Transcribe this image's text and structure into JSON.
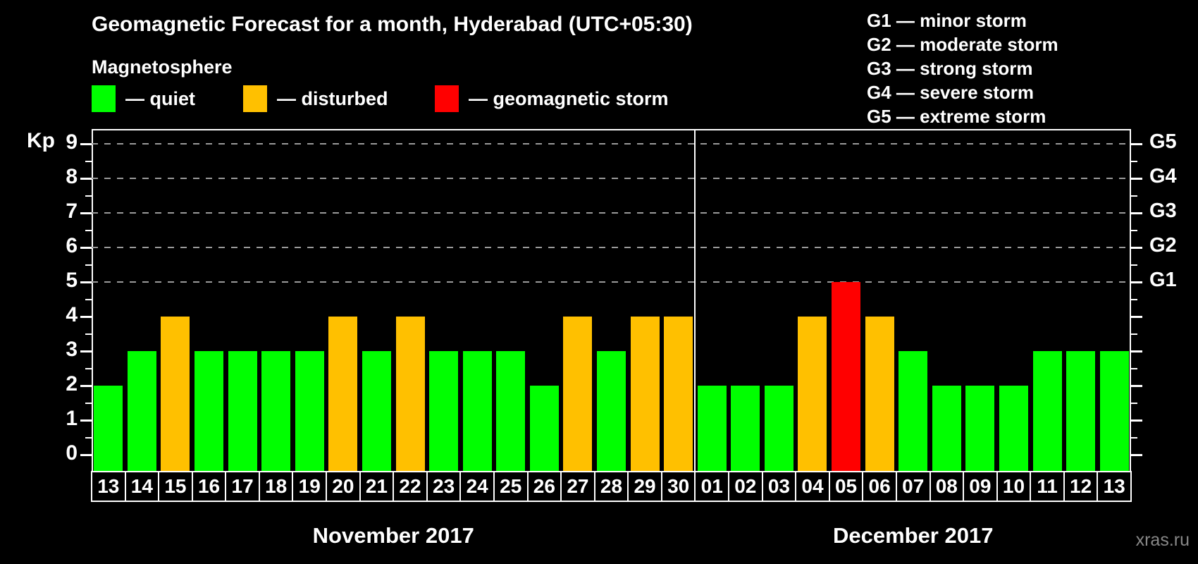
{
  "title": "Geomagnetic Forecast for a month, Hyderabad (UTC+05:30)",
  "subtitle": "Magnetosphere",
  "legend": {
    "items": [
      {
        "key": "quiet",
        "label": "— quiet",
        "color": "#00ff00"
      },
      {
        "key": "disturbed",
        "label": "— disturbed",
        "color": "#ffc000"
      },
      {
        "key": "storm",
        "label": "— geomagnetic storm",
        "color": "#ff0000"
      }
    ]
  },
  "g_scale_legend": {
    "lines": [
      "G1 — minor storm",
      "G2 — moderate storm",
      "G3 — strong storm",
      "G4 — severe storm",
      "G5 — extreme storm"
    ]
  },
  "watermark": "xras.ru",
  "chart_data": {
    "type": "bar",
    "title": "Geomagnetic Forecast for a month, Hyderabad (UTC+05:30)",
    "ylabel": "Kp",
    "ylim": [
      -0.47,
      9.43
    ],
    "y_ticks": [
      0,
      1,
      2,
      3,
      4,
      5,
      6,
      7,
      8,
      9
    ],
    "gridlines_at": [
      5,
      6,
      7,
      8,
      9
    ],
    "grid": "dashed horizontal at storm levels only",
    "legend_position": "top",
    "right_axis_labels": [
      {
        "label": "G1",
        "kp": 5
      },
      {
        "label": "G2",
        "kp": 6
      },
      {
        "label": "G3",
        "kp": 7
      },
      {
        "label": "G4",
        "kp": 8
      },
      {
        "label": "G5",
        "kp": 9
      }
    ],
    "bar_colors": {
      "quiet": "#00ff00",
      "disturbed": "#ffc000",
      "storm": "#ff0000"
    },
    "months": [
      {
        "label": "November 2017",
        "days": [
          "13",
          "14",
          "15",
          "16",
          "17",
          "18",
          "19",
          "20",
          "21",
          "22",
          "23",
          "24",
          "25",
          "26",
          "27",
          "28",
          "29",
          "30"
        ]
      },
      {
        "label": "December 2017",
        "days": [
          "01",
          "02",
          "03",
          "04",
          "05",
          "06",
          "07",
          "08",
          "09",
          "10",
          "11",
          "12",
          "13"
        ]
      }
    ],
    "categories": [
      "13",
      "14",
      "15",
      "16",
      "17",
      "18",
      "19",
      "20",
      "21",
      "22",
      "23",
      "24",
      "25",
      "26",
      "27",
      "28",
      "29",
      "30",
      "01",
      "02",
      "03",
      "04",
      "05",
      "06",
      "07",
      "08",
      "09",
      "10",
      "11",
      "12",
      "13"
    ],
    "values": [
      2,
      3,
      4,
      3,
      3,
      3,
      3,
      4,
      3,
      4,
      3,
      3,
      3,
      2,
      4,
      3,
      4,
      4,
      2,
      2,
      2,
      4,
      5,
      4,
      3,
      2,
      2,
      2,
      3,
      3,
      3
    ],
    "statuses": [
      "quiet",
      "quiet",
      "disturbed",
      "quiet",
      "quiet",
      "quiet",
      "quiet",
      "disturbed",
      "quiet",
      "disturbed",
      "quiet",
      "quiet",
      "quiet",
      "quiet",
      "disturbed",
      "quiet",
      "disturbed",
      "disturbed",
      "quiet",
      "quiet",
      "quiet",
      "disturbed",
      "storm",
      "disturbed",
      "quiet",
      "quiet",
      "quiet",
      "quiet",
      "quiet",
      "quiet",
      "quiet"
    ]
  }
}
